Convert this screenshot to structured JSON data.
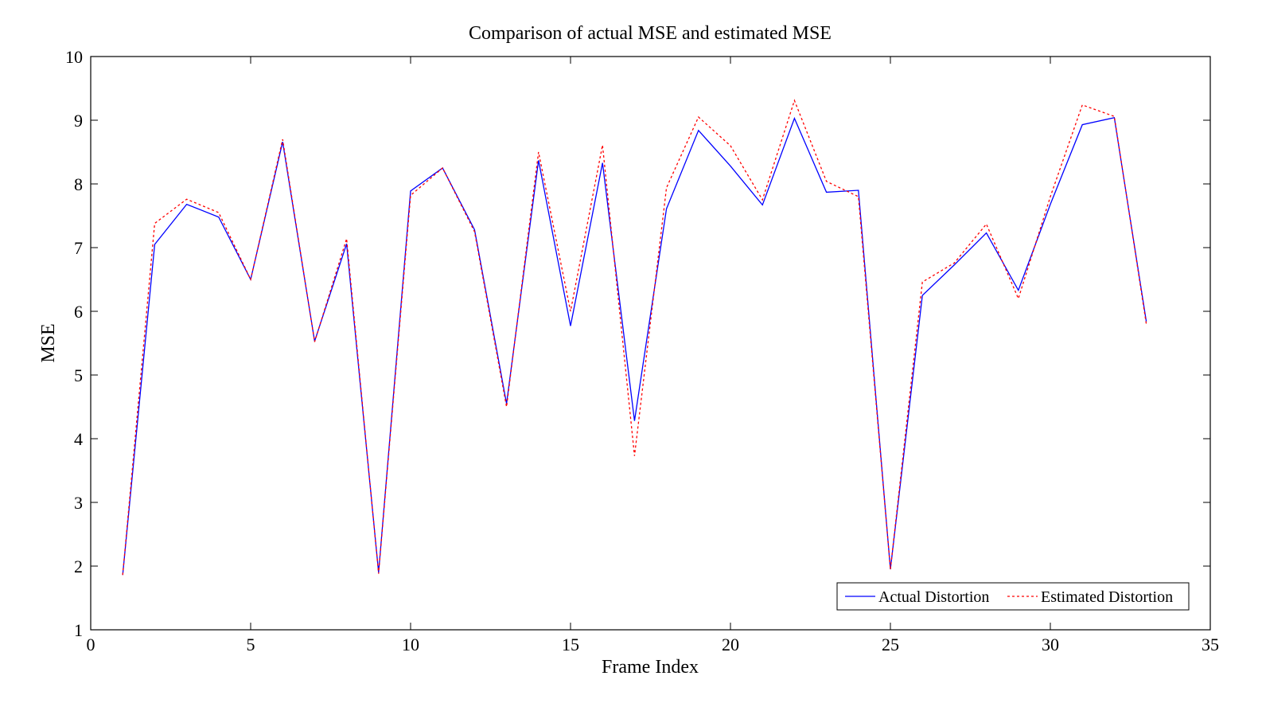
{
  "chart_data": {
    "type": "line",
    "title": "Comparison of actual MSE and estimated MSE",
    "xlabel": "Frame Index",
    "ylabel": "MSE",
    "xlim": [
      0,
      35
    ],
    "ylim": [
      1,
      10
    ],
    "x_ticks": [
      0,
      5,
      10,
      15,
      20,
      25,
      30,
      35
    ],
    "y_ticks": [
      1,
      2,
      3,
      4,
      5,
      6,
      7,
      8,
      9,
      10
    ],
    "legend_position": "bottom-right",
    "grid": false,
    "x": [
      1,
      2,
      3,
      4,
      5,
      6,
      7,
      8,
      9,
      10,
      11,
      12,
      13,
      14,
      15,
      16,
      17,
      18,
      19,
      20,
      21,
      22,
      23,
      24,
      25,
      26,
      27,
      28,
      29,
      30,
      31,
      32,
      33
    ],
    "series": [
      {
        "name": "Actual Distortion",
        "color": "#0000ff",
        "style": "solid",
        "values": [
          1.86,
          7.05,
          7.68,
          7.48,
          6.5,
          8.66,
          5.53,
          7.06,
          1.9,
          7.89,
          8.25,
          7.28,
          4.55,
          8.37,
          5.77,
          8.33,
          4.28,
          7.61,
          8.84,
          8.28,
          7.67,
          9.03,
          7.87,
          7.9,
          1.95,
          6.25,
          6.73,
          7.23,
          6.33,
          7.68,
          8.93,
          9.04,
          5.84
        ]
      },
      {
        "name": "Estimated Distortion",
        "color": "#ff0000",
        "style": "dotted",
        "values": [
          1.86,
          7.38,
          7.76,
          7.55,
          6.5,
          8.7,
          5.52,
          7.14,
          1.88,
          7.82,
          8.25,
          7.25,
          4.5,
          8.5,
          6.0,
          8.61,
          3.73,
          7.94,
          9.05,
          8.6,
          7.75,
          9.31,
          8.04,
          7.8,
          1.95,
          6.46,
          6.76,
          7.37,
          6.2,
          7.8,
          9.24,
          9.06,
          5.8
        ]
      }
    ]
  }
}
